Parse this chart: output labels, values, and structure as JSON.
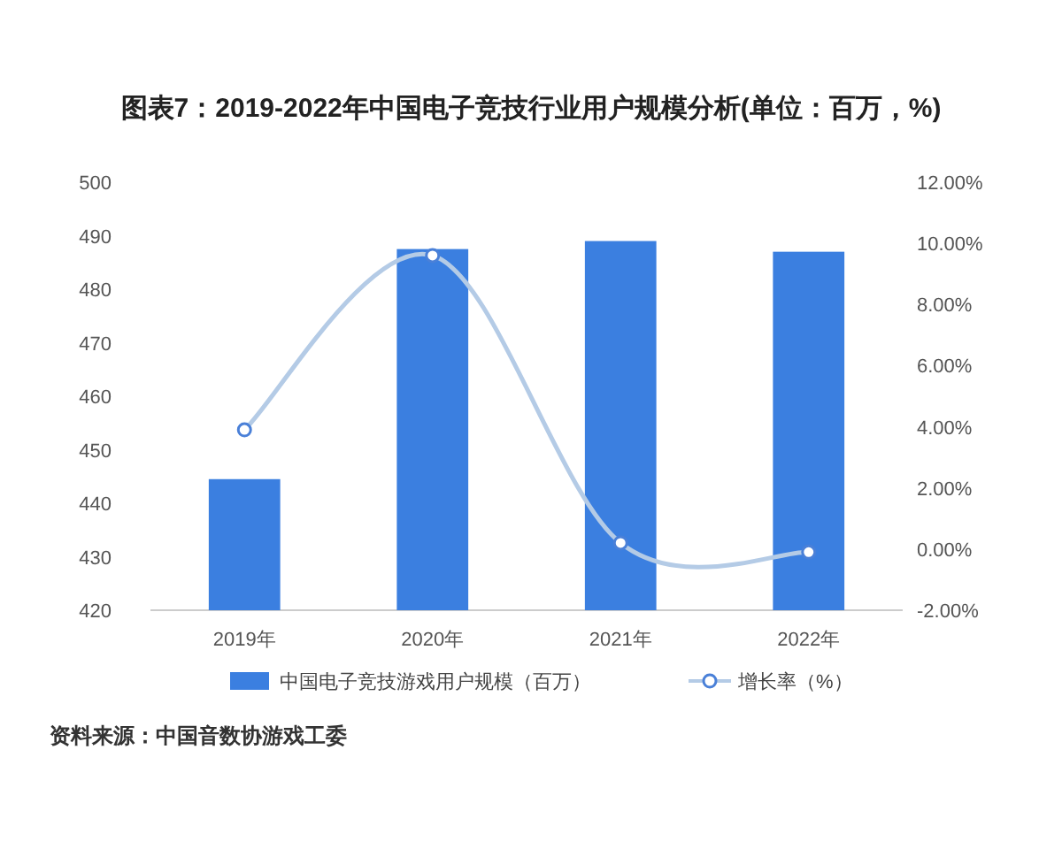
{
  "chart_data": {
    "type": "bar",
    "title": "图表7：2019-2022年中国电子竞技行业用户规模分析(单位：百万，%)",
    "categories": [
      "2019年",
      "2020年",
      "2021年",
      "2022年"
    ],
    "series": [
      {
        "name": "中国电子竞技游戏用户规模（百万）",
        "color": "#3b7fe0",
        "values": [
          444.5,
          487.5,
          489,
          487
        ]
      },
      {
        "name": "增长率（%）",
        "type": "line",
        "axis": "y2",
        "color": "#b4cbe6",
        "marker": "circle",
        "values": [
          3.9,
          9.6,
          0.2,
          -0.1
        ]
      }
    ],
    "ylim": [
      420,
      500
    ],
    "yticks": [
      420,
      430,
      440,
      450,
      460,
      470,
      480,
      490,
      500
    ],
    "y2lim": [
      -2,
      12
    ],
    "y2ticks": [
      {
        "value": -2,
        "label": "-2.00%"
      },
      {
        "value": 0,
        "label": "0.00%"
      },
      {
        "value": 2,
        "label": "2.00%"
      },
      {
        "value": 4,
        "label": "4.00%"
      },
      {
        "value": 6,
        "label": "6.00%"
      },
      {
        "value": 8,
        "label": "8.00%"
      },
      {
        "value": 10,
        "label": "10.00%"
      },
      {
        "value": 12,
        "label": "12.00%"
      }
    ],
    "legend": "bottom",
    "annotations": [
      "资料来源：中国音数协游戏工委"
    ]
  }
}
